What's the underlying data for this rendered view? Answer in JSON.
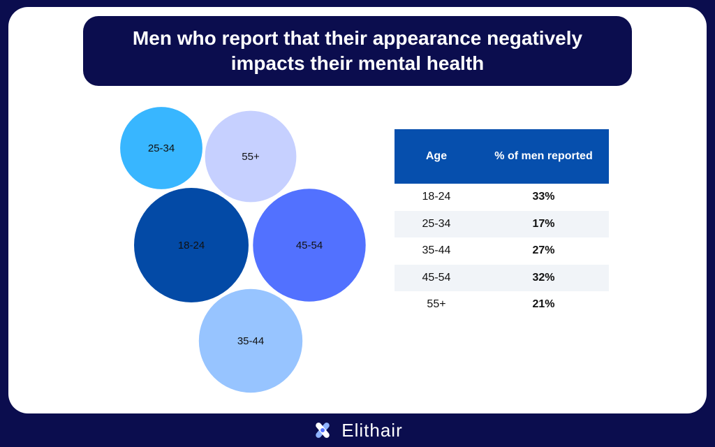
{
  "title": "Men who report that their appearance negatively impacts their mental health",
  "chart_data": {
    "type": "table",
    "columns": [
      "Age",
      "% of men reported"
    ],
    "rows": [
      {
        "age": "18-24",
        "pct": "33%",
        "value": 33,
        "color": "#034aa6"
      },
      {
        "age": "25-34",
        "pct": "17%",
        "value": 17,
        "color": "#38b6ff"
      },
      {
        "age": "35-44",
        "pct": "27%",
        "value": 27,
        "color": "#97c4ff"
      },
      {
        "age": "45-54",
        "pct": "32%",
        "value": 32,
        "color": "#5271ff"
      },
      {
        "age": "55+",
        "pct": "21%",
        "value": 21,
        "color": "#c6d0ff"
      }
    ]
  },
  "brand": {
    "name": "Elithair"
  }
}
